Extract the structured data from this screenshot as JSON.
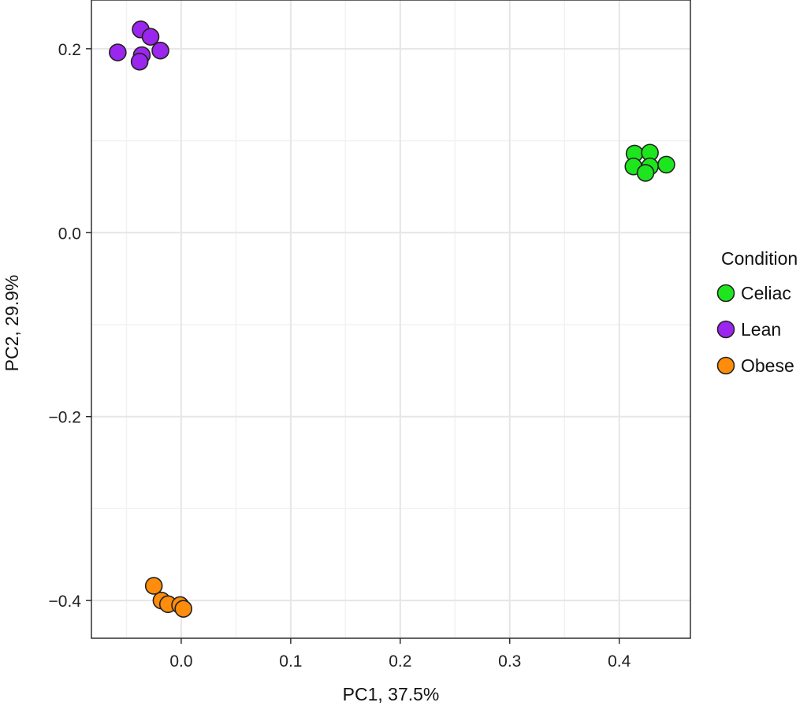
{
  "chart_data": {
    "type": "scatter",
    "xlabel": "PC1, 37.5%",
    "ylabel": "PC2, 29.9%",
    "xlim": [
      -0.082,
      0.465
    ],
    "ylim": [
      -0.441,
      0.253
    ],
    "x_ticks": [
      0.0,
      0.1,
      0.2,
      0.3,
      0.4
    ],
    "x_tick_labels": [
      "0.0",
      "0.1",
      "0.2",
      "0.3",
      "0.4"
    ],
    "y_ticks": [
      -0.4,
      -0.2,
      0.0,
      0.2
    ],
    "y_tick_labels": [
      "−0.4",
      "−0.2",
      "0.0",
      "0.2"
    ],
    "x_minor_ticks": [
      -0.05,
      0.05,
      0.15,
      0.25,
      0.35
    ],
    "y_minor_ticks": [
      -0.3,
      -0.1,
      0.1
    ],
    "grid": true,
    "legend": {
      "title": "Condition",
      "position": "right"
    },
    "series": [
      {
        "name": "Celiac",
        "color": "#1ee61e",
        "points": [
          {
            "x": 0.414,
            "y": 0.086
          },
          {
            "x": 0.428,
            "y": 0.087
          },
          {
            "x": 0.413,
            "y": 0.072
          },
          {
            "x": 0.428,
            "y": 0.072
          },
          {
            "x": 0.424,
            "y": 0.065
          },
          {
            "x": 0.443,
            "y": 0.074
          }
        ]
      },
      {
        "name": "Lean",
        "color": "#9b26ee",
        "points": [
          {
            "x": -0.037,
            "y": 0.221
          },
          {
            "x": -0.028,
            "y": 0.213
          },
          {
            "x": -0.058,
            "y": 0.196
          },
          {
            "x": -0.036,
            "y": 0.193
          },
          {
            "x": -0.038,
            "y": 0.186
          },
          {
            "x": -0.019,
            "y": 0.198
          }
        ]
      },
      {
        "name": "Obese",
        "color": "#ff8c0a",
        "points": [
          {
            "x": -0.025,
            "y": -0.384
          },
          {
            "x": -0.018,
            "y": -0.4
          },
          {
            "x": -0.012,
            "y": -0.404
          },
          {
            "x": -0.001,
            "y": -0.405
          },
          {
            "x": 0.002,
            "y": -0.409
          }
        ]
      }
    ]
  }
}
